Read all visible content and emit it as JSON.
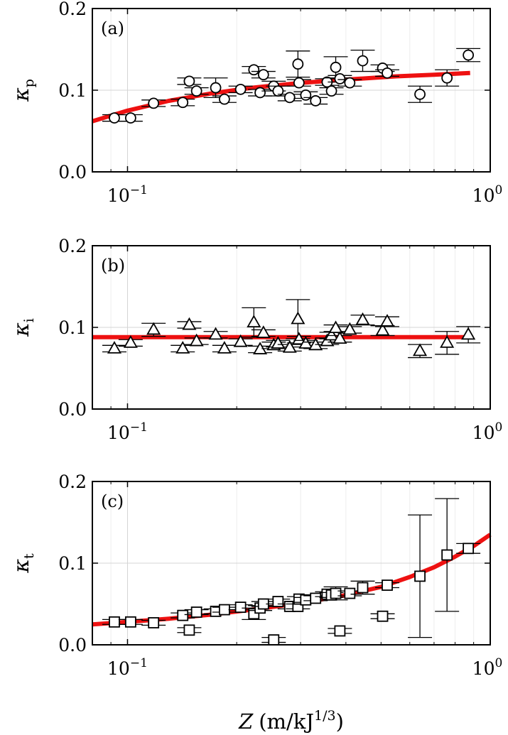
{
  "chart_data": [
    {
      "type": "scatter",
      "panel_label": "(a)",
      "ylabel": "κ",
      "ylabel_sub": "p",
      "x_scale": "log",
      "xlim": [
        0.08,
        1.0
      ],
      "ylim": [
        0.0,
        0.2
      ],
      "yticks": [
        0.0,
        0.1,
        0.2
      ],
      "ytick_labels": [
        "0.0",
        "0.1",
        "0.2"
      ],
      "xticks": [
        0.1,
        1.0
      ],
      "xtick_labels": [
        "10",
        "10"
      ],
      "xtick_exponents": [
        "−1",
        "0"
      ],
      "grid": true,
      "marker": "circle",
      "marker_fill": "#ffffff",
      "fit_color": "#ee1111",
      "points": [
        {
          "x": 0.092,
          "y": 0.066,
          "err": 0.004
        },
        {
          "x": 0.102,
          "y": 0.066,
          "err": 0.004
        },
        {
          "x": 0.118,
          "y": 0.084,
          "err": 0.004
        },
        {
          "x": 0.142,
          "y": 0.085,
          "err": 0.004
        },
        {
          "x": 0.148,
          "y": 0.111,
          "err": 0.004
        },
        {
          "x": 0.155,
          "y": 0.099,
          "err": 0.004
        },
        {
          "x": 0.175,
          "y": 0.103,
          "err": 0.012
        },
        {
          "x": 0.185,
          "y": 0.089,
          "err": 0.004
        },
        {
          "x": 0.205,
          "y": 0.101,
          "err": 0.004
        },
        {
          "x": 0.223,
          "y": 0.125,
          "err": 0.004
        },
        {
          "x": 0.232,
          "y": 0.097,
          "err": 0.004
        },
        {
          "x": 0.237,
          "y": 0.119,
          "err": 0.004
        },
        {
          "x": 0.253,
          "y": 0.105,
          "err": 0.006
        },
        {
          "x": 0.26,
          "y": 0.099,
          "err": 0.006
        },
        {
          "x": 0.28,
          "y": 0.091,
          "err": 0.004
        },
        {
          "x": 0.295,
          "y": 0.132,
          "err": 0.016
        },
        {
          "x": 0.297,
          "y": 0.109,
          "err": 0.004
        },
        {
          "x": 0.31,
          "y": 0.094,
          "err": 0.004
        },
        {
          "x": 0.33,
          "y": 0.087,
          "err": 0.004
        },
        {
          "x": 0.355,
          "y": 0.11,
          "err": 0.004
        },
        {
          "x": 0.365,
          "y": 0.099,
          "err": 0.004
        },
        {
          "x": 0.375,
          "y": 0.128,
          "err": 0.013
        },
        {
          "x": 0.385,
          "y": 0.114,
          "err": 0.004
        },
        {
          "x": 0.41,
          "y": 0.109,
          "err": 0.004
        },
        {
          "x": 0.445,
          "y": 0.136,
          "err": 0.013
        },
        {
          "x": 0.505,
          "y": 0.127,
          "err": 0.004
        },
        {
          "x": 0.52,
          "y": 0.121,
          "err": 0.004
        },
        {
          "x": 0.64,
          "y": 0.095,
          "err": 0.01
        },
        {
          "x": 0.76,
          "y": 0.115,
          "err": 0.01
        },
        {
          "x": 0.87,
          "y": 0.143,
          "err": 0.008
        }
      ],
      "fit": {
        "x": [
          0.08,
          0.1,
          0.13,
          0.17,
          0.22,
          0.3,
          0.4,
          0.55,
          0.7,
          0.88
        ],
        "y": [
          0.062,
          0.075,
          0.087,
          0.096,
          0.103,
          0.109,
          0.113,
          0.117,
          0.119,
          0.121
        ]
      }
    },
    {
      "type": "scatter",
      "panel_label": "(b)",
      "ylabel": "κ",
      "ylabel_sub": "i",
      "x_scale": "log",
      "xlim": [
        0.08,
        1.0
      ],
      "ylim": [
        0.0,
        0.2
      ],
      "yticks": [
        0.0,
        0.1,
        0.2
      ],
      "ytick_labels": [
        "0.0",
        "0.1",
        "0.2"
      ],
      "xticks": [
        0.1,
        1.0
      ],
      "xtick_labels": [
        "10",
        "10"
      ],
      "xtick_exponents": [
        "−1",
        "0"
      ],
      "grid": true,
      "marker": "triangle",
      "marker_fill": "#ffffff",
      "fit_color": "#ee1111",
      "points": [
        {
          "x": 0.092,
          "y": 0.074,
          "err": 0.004
        },
        {
          "x": 0.102,
          "y": 0.081,
          "err": 0.004
        },
        {
          "x": 0.118,
          "y": 0.097,
          "err": 0.008
        },
        {
          "x": 0.142,
          "y": 0.074,
          "err": 0.004
        },
        {
          "x": 0.148,
          "y": 0.103,
          "err": 0.004
        },
        {
          "x": 0.155,
          "y": 0.083,
          "err": 0.004
        },
        {
          "x": 0.175,
          "y": 0.091,
          "err": 0.004
        },
        {
          "x": 0.185,
          "y": 0.074,
          "err": 0.004
        },
        {
          "x": 0.205,
          "y": 0.082,
          "err": 0.004
        },
        {
          "x": 0.223,
          "y": 0.106,
          "err": 0.018
        },
        {
          "x": 0.232,
          "y": 0.073,
          "err": 0.004
        },
        {
          "x": 0.237,
          "y": 0.093,
          "err": 0.004
        },
        {
          "x": 0.253,
          "y": 0.078,
          "err": 0.004
        },
        {
          "x": 0.26,
          "y": 0.08,
          "err": 0.004
        },
        {
          "x": 0.28,
          "y": 0.075,
          "err": 0.004
        },
        {
          "x": 0.295,
          "y": 0.11,
          "err": 0.024
        },
        {
          "x": 0.297,
          "y": 0.085,
          "err": 0.004
        },
        {
          "x": 0.31,
          "y": 0.08,
          "err": 0.004
        },
        {
          "x": 0.33,
          "y": 0.078,
          "err": 0.004
        },
        {
          "x": 0.355,
          "y": 0.083,
          "err": 0.004
        },
        {
          "x": 0.365,
          "y": 0.09,
          "err": 0.004
        },
        {
          "x": 0.375,
          "y": 0.099,
          "err": 0.004
        },
        {
          "x": 0.385,
          "y": 0.086,
          "err": 0.004
        },
        {
          "x": 0.41,
          "y": 0.097,
          "err": 0.004
        },
        {
          "x": 0.445,
          "y": 0.109,
          "err": 0.006
        },
        {
          "x": 0.505,
          "y": 0.096,
          "err": 0.006
        },
        {
          "x": 0.52,
          "y": 0.107,
          "err": 0.006
        },
        {
          "x": 0.64,
          "y": 0.071,
          "err": 0.008
        },
        {
          "x": 0.76,
          "y": 0.081,
          "err": 0.014
        },
        {
          "x": 0.87,
          "y": 0.091,
          "err": 0.01
        }
      ],
      "fit": {
        "x": [
          0.08,
          0.88
        ],
        "y": [
          0.088,
          0.088
        ]
      }
    },
    {
      "type": "scatter",
      "panel_label": "(c)",
      "ylabel": "κ",
      "ylabel_sub": "t",
      "x_scale": "log",
      "xlim": [
        0.08,
        1.0
      ],
      "ylim": [
        0.0,
        0.2
      ],
      "yticks": [
        0.0,
        0.1,
        0.2
      ],
      "ytick_labels": [
        "0.0",
        "0.1",
        "0.2"
      ],
      "xticks": [
        0.1,
        1.0
      ],
      "xtick_labels": [
        "10",
        "10"
      ],
      "xtick_exponents": [
        "−1",
        "0"
      ],
      "grid": true,
      "marker": "square",
      "marker_fill": "#ffffff",
      "fit_color": "#ee1111",
      "xlabel_var": "Z",
      "xlabel_unit": "(m/kJ",
      "xlabel_exp": "1/3",
      "xlabel_close": ")",
      "points": [
        {
          "x": 0.092,
          "y": 0.028,
          "err": 0.003
        },
        {
          "x": 0.102,
          "y": 0.028,
          "err": 0.003
        },
        {
          "x": 0.118,
          "y": 0.027,
          "err": 0.003
        },
        {
          "x": 0.142,
          "y": 0.036,
          "err": 0.003
        },
        {
          "x": 0.148,
          "y": 0.018,
          "err": 0.003
        },
        {
          "x": 0.155,
          "y": 0.04,
          "err": 0.003
        },
        {
          "x": 0.175,
          "y": 0.041,
          "err": 0.003
        },
        {
          "x": 0.185,
          "y": 0.043,
          "err": 0.003
        },
        {
          "x": 0.205,
          "y": 0.046,
          "err": 0.003
        },
        {
          "x": 0.223,
          "y": 0.038,
          "err": 0.007
        },
        {
          "x": 0.232,
          "y": 0.045,
          "err": 0.003
        },
        {
          "x": 0.237,
          "y": 0.05,
          "err": 0.003
        },
        {
          "x": 0.253,
          "y": 0.006,
          "err": 0.003
        },
        {
          "x": 0.26,
          "y": 0.053,
          "err": 0.003
        },
        {
          "x": 0.28,
          "y": 0.047,
          "err": 0.003
        },
        {
          "x": 0.295,
          "y": 0.047,
          "err": 0.003
        },
        {
          "x": 0.297,
          "y": 0.056,
          "err": 0.003
        },
        {
          "x": 0.31,
          "y": 0.055,
          "err": 0.003
        },
        {
          "x": 0.33,
          "y": 0.057,
          "err": 0.003
        },
        {
          "x": 0.355,
          "y": 0.062,
          "err": 0.003
        },
        {
          "x": 0.365,
          "y": 0.061,
          "err": 0.003
        },
        {
          "x": 0.375,
          "y": 0.063,
          "err": 0.008
        },
        {
          "x": 0.385,
          "y": 0.017,
          "err": 0.003
        },
        {
          "x": 0.41,
          "y": 0.063,
          "err": 0.003
        },
        {
          "x": 0.445,
          "y": 0.07,
          "err": 0.008
        },
        {
          "x": 0.505,
          "y": 0.035,
          "err": 0.003
        },
        {
          "x": 0.52,
          "y": 0.073,
          "err": 0.003
        },
        {
          "x": 0.64,
          "y": 0.084,
          "err": 0.075
        },
        {
          "x": 0.76,
          "y": 0.11,
          "err": 0.069
        },
        {
          "x": 0.87,
          "y": 0.118,
          "err": 0.006
        }
      ],
      "fit": {
        "x": [
          0.08,
          0.1,
          0.13,
          0.17,
          0.22,
          0.3,
          0.4,
          0.5,
          0.6,
          0.7,
          0.8,
          0.9,
          1.0
        ],
        "y": [
          0.025,
          0.028,
          0.032,
          0.037,
          0.043,
          0.051,
          0.061,
          0.071,
          0.083,
          0.095,
          0.108,
          0.121,
          0.135
        ]
      }
    }
  ]
}
